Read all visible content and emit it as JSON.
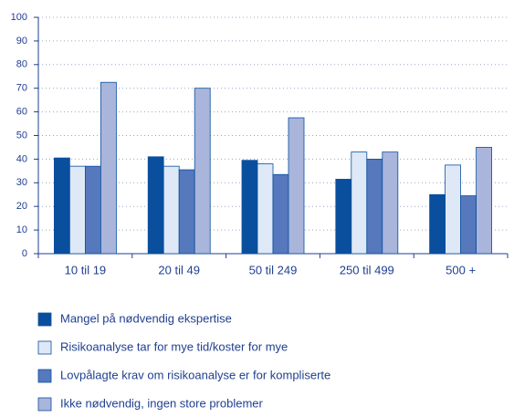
{
  "chart_data": {
    "type": "bar",
    "categories": [
      "10 til 19",
      "20 til 49",
      "50 til 249",
      "250 til 499",
      "500 +"
    ],
    "series": [
      {
        "name": "Mangel på nødvendig ekspertise",
        "color": "#0a4f9e",
        "values": [
          40.5,
          41,
          39.5,
          31.5,
          25
        ]
      },
      {
        "name": "Risikoanalyse tar for mye tid/koster for mye",
        "color": "#dfe8f6",
        "values": [
          37,
          37,
          38,
          43,
          37.5
        ]
      },
      {
        "name": "Lovpålagte krav om risikoanalyse er for kompliserte",
        "color": "#5678bd",
        "values": [
          37,
          35.5,
          33.5,
          40,
          24.5
        ]
      },
      {
        "name": "Ikke nødvendig, ingen store problemer",
        "color": "#aab5dc",
        "values": [
          72.5,
          70,
          57.5,
          43,
          45
        ]
      }
    ],
    "ylim": [
      0,
      100
    ],
    "yticks": [
      0,
      10,
      20,
      30,
      40,
      50,
      60,
      70,
      80,
      90,
      100
    ],
    "grid": true
  }
}
